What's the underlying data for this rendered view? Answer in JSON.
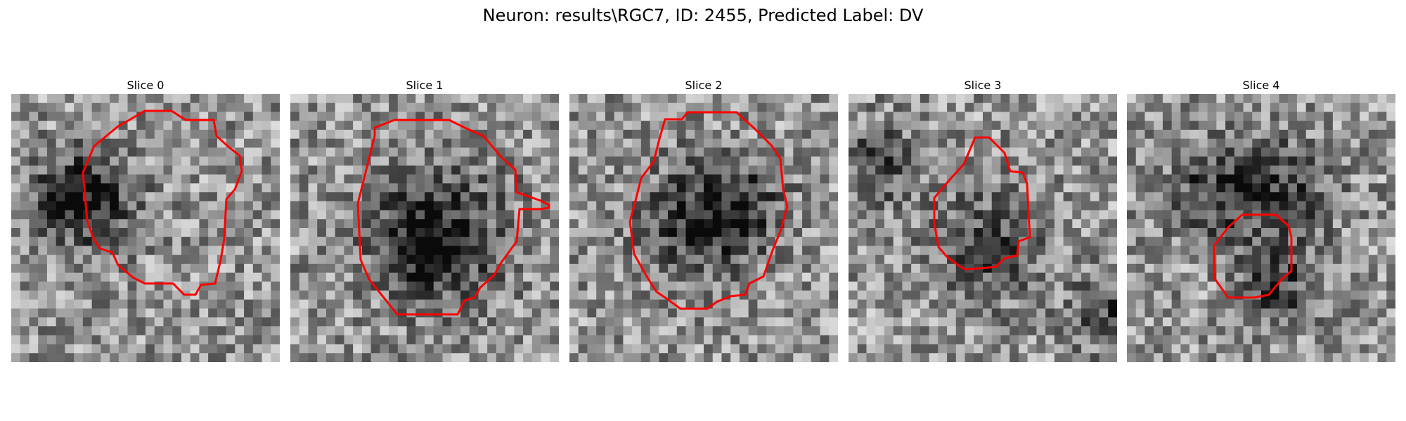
{
  "figure": {
    "title": "Neuron: results\\RGC7, ID: 2455, Predicted Label: DV"
  },
  "panels": [
    {
      "title": "Slice 0"
    },
    {
      "title": "Slice 1"
    },
    {
      "title": "Slice 2"
    },
    {
      "title": "Slice 3"
    },
    {
      "title": "Slice 4"
    }
  ],
  "colors": {
    "contour": "#ff0000",
    "colormap": "gray"
  }
}
